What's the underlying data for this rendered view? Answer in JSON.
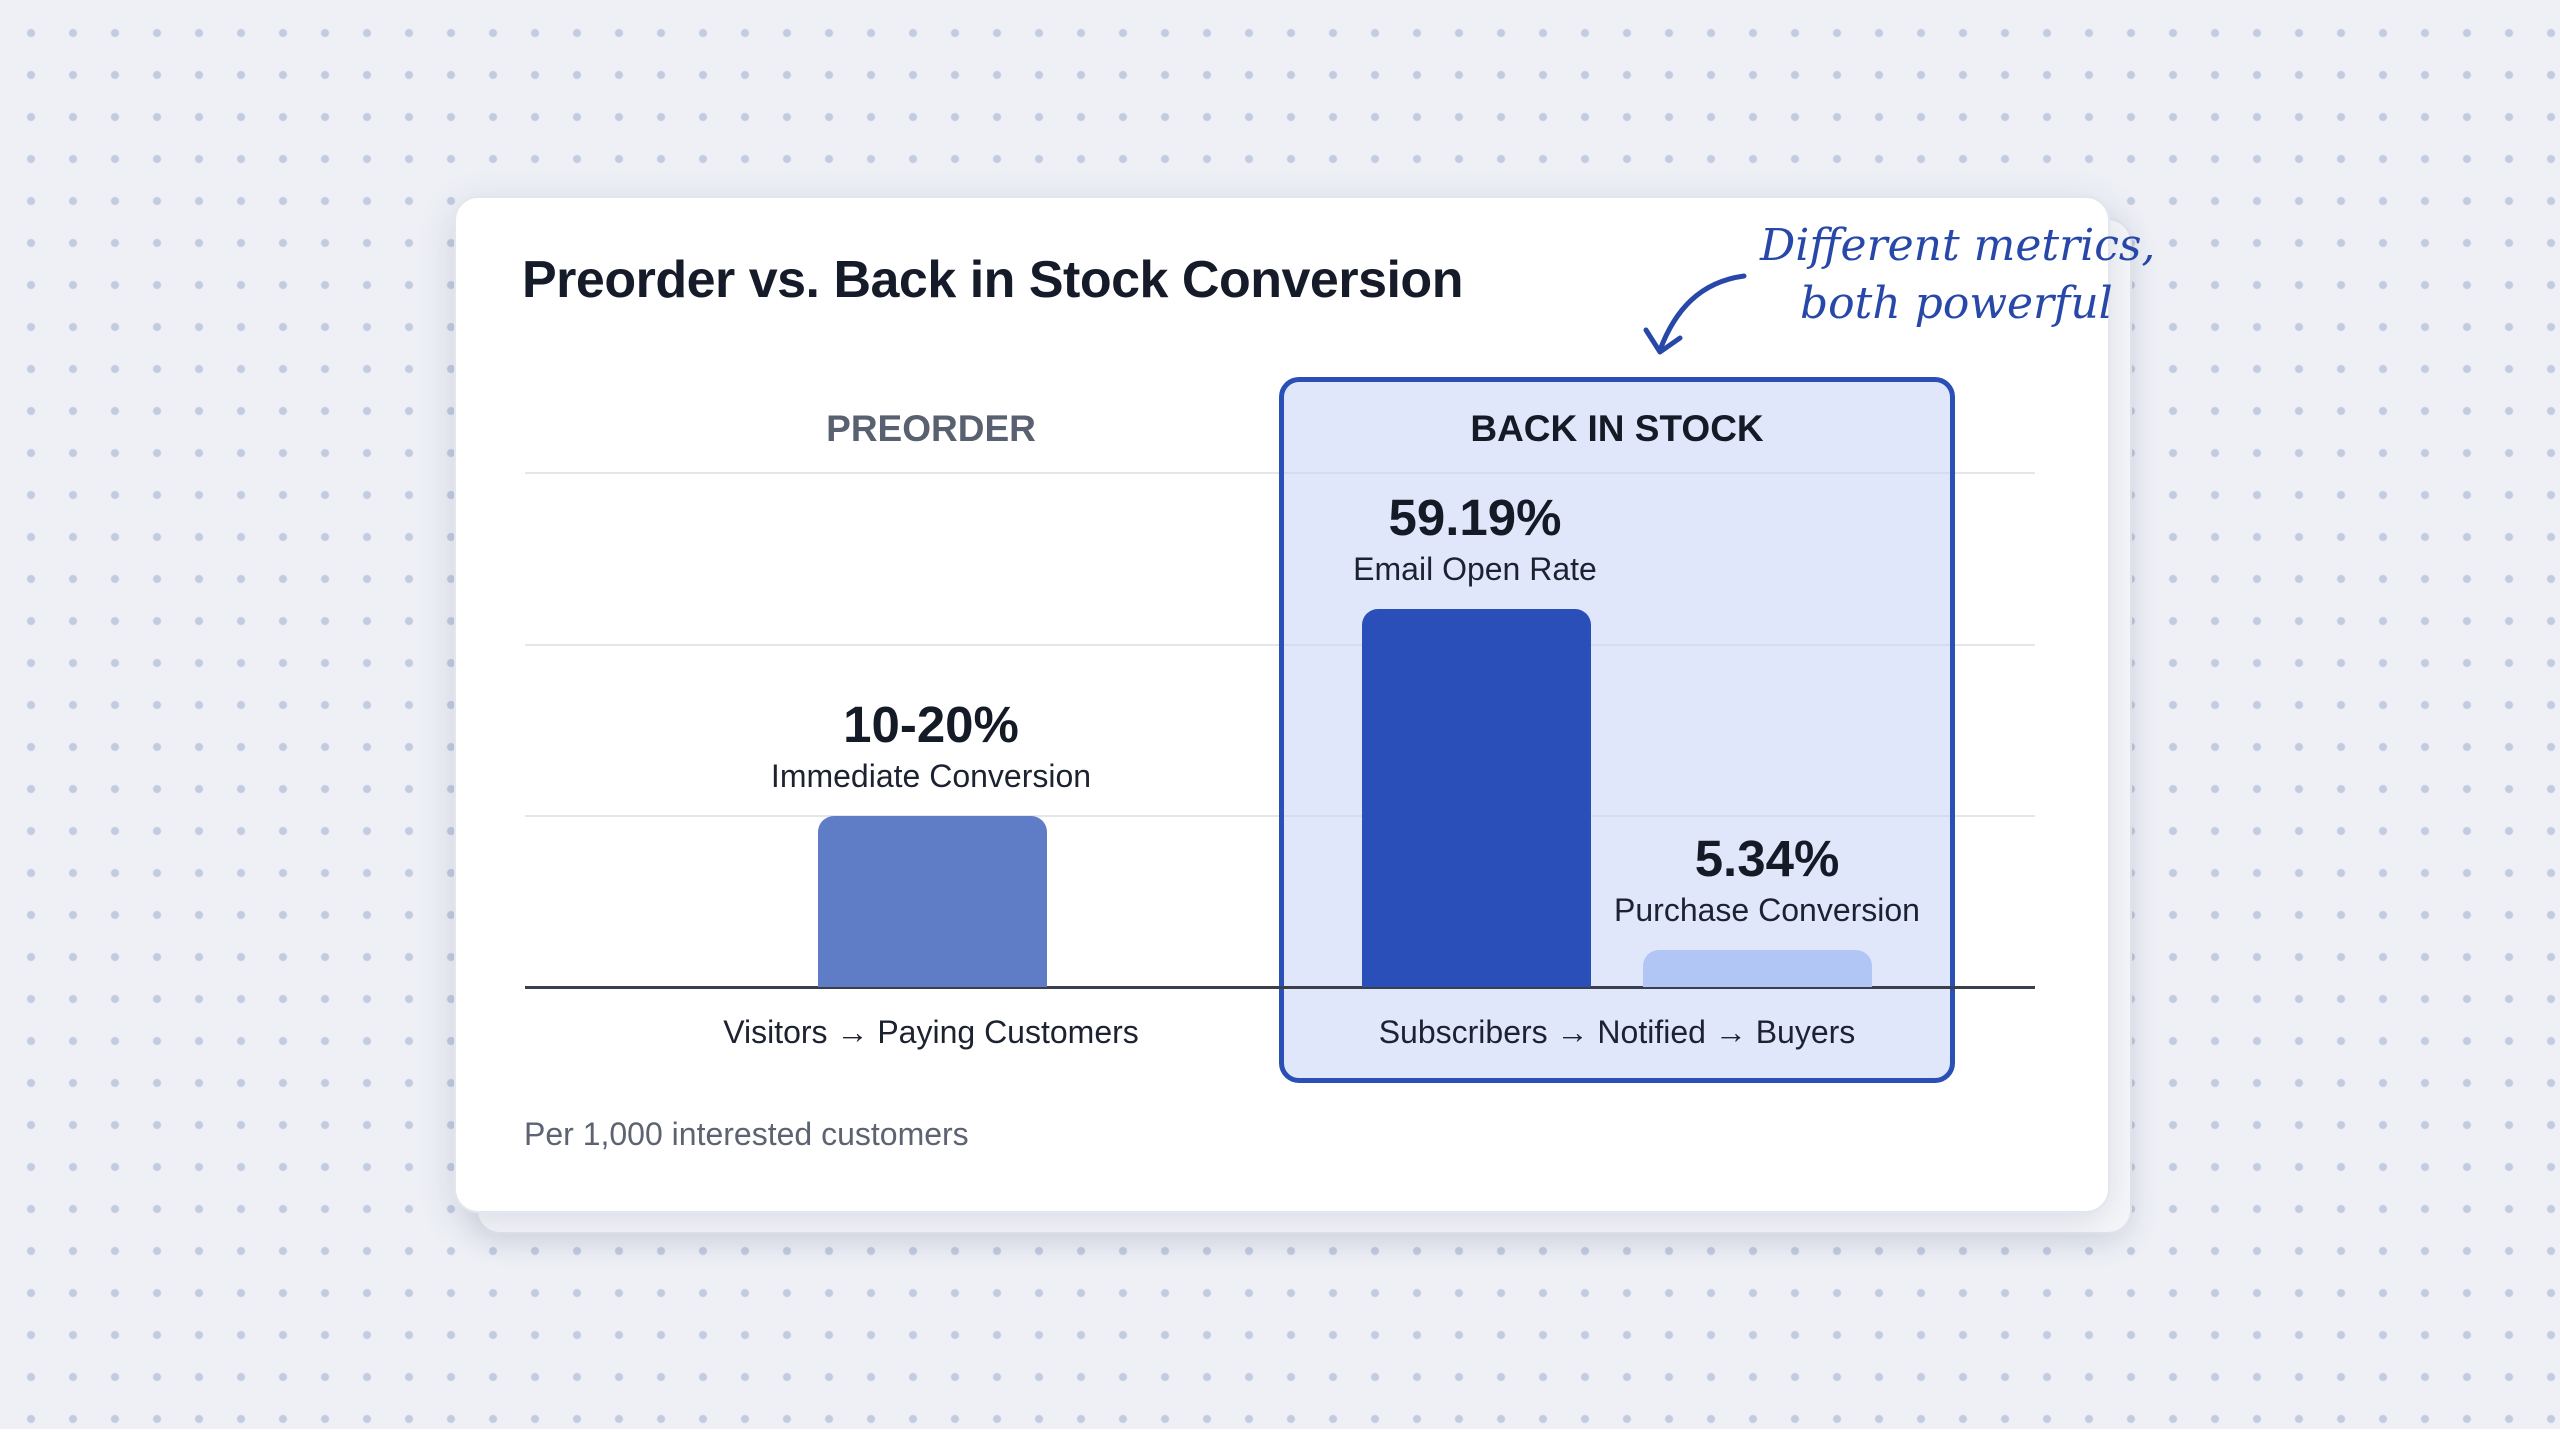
{
  "chart_data": {
    "type": "bar",
    "title": "Preorder vs. Back in Stock Conversion",
    "groups": [
      {
        "name": "PREORDER",
        "axis_label": "Visitors → Paying Customers",
        "bars": [
          {
            "value_label": "10-20%",
            "value_range": [
              10,
              20
            ],
            "metric": "Immediate Conversion",
            "color": "#5f7cc7"
          }
        ]
      },
      {
        "name": "BACK IN STOCK",
        "axis_label": "Subscribers → Notified → Buyers",
        "highlighted": true,
        "bars": [
          {
            "value_label": "59.19%",
            "value": 59.19,
            "metric": "Email Open Rate",
            "color": "#2a4fb8"
          },
          {
            "value_label": "5.34%",
            "value": 5.34,
            "metric": "Purchase Conversion",
            "color": "#b2c6f6"
          }
        ]
      }
    ],
    "grid": true,
    "footnote": "Per 1,000 interested customers",
    "annotation": [
      "Different metrics,",
      "both powerful"
    ],
    "colors": {
      "highlight_border": "#2a4fb5",
      "highlight_fill": "#dce4fb",
      "annotation": "#2748a8"
    }
  }
}
